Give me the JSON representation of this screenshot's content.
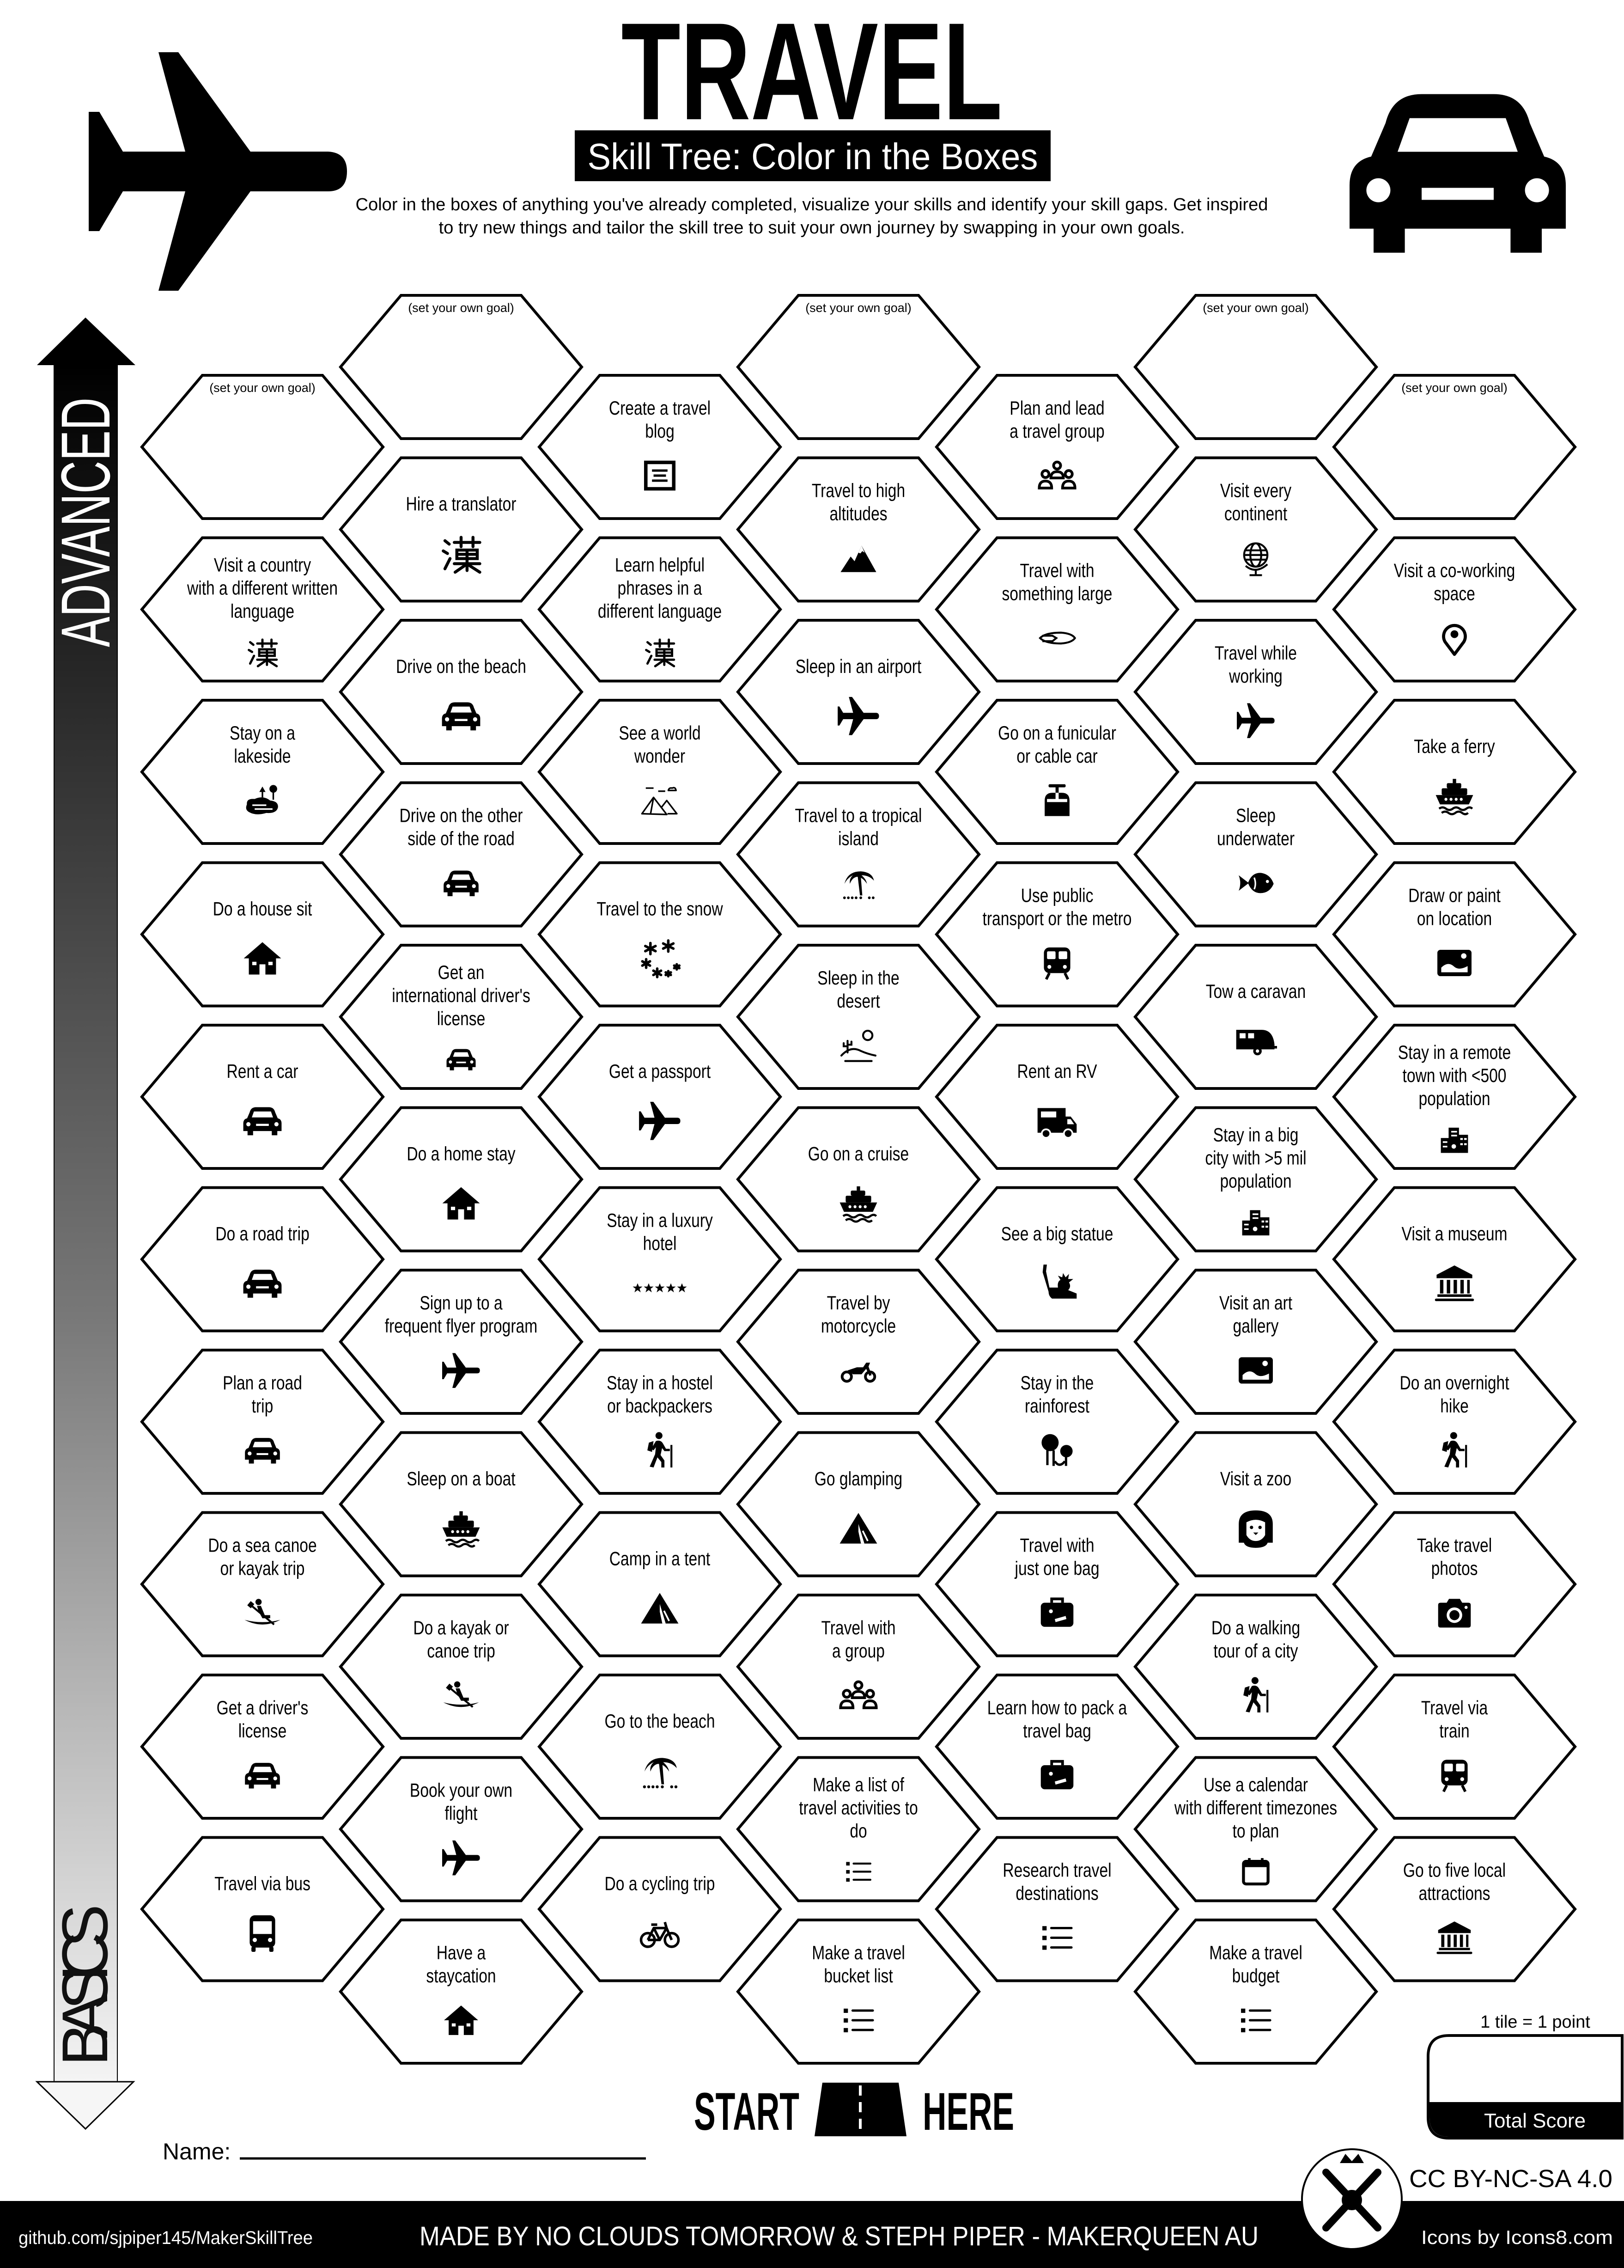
{
  "header": {
    "title": "TRAVEL",
    "subtitle": "Skill Tree: Color in the Boxes",
    "description": [
      "Color in the boxes of anything you've already completed, visualize your skills and identify your skill gaps.  Get inspired",
      "to try new things and tailor the skill tree to suit your own journey by swapping in your own goals."
    ],
    "left_icon": "airplane-icon",
    "right_icon": "car-icon"
  },
  "sidebar": {
    "top_label": "ADVANCED",
    "bottom_label": "BASICS"
  },
  "hexes": {
    "goal_label": "(set your own goal)",
    "columns": [
      [
        {
          "goal": true
        },
        {
          "lines": [
            "Visit a country",
            "with a different written",
            "language"
          ],
          "icon": "hanzi"
        },
        {
          "lines": [
            "Stay on a",
            "lakeside"
          ],
          "icon": "lake"
        },
        {
          "lines": [
            "Do a house sit"
          ],
          "icon": "house"
        },
        {
          "lines": [
            "Rent a car"
          ],
          "icon": "car"
        },
        {
          "lines": [
            "Do a road trip"
          ],
          "icon": "car"
        },
        {
          "lines": [
            "Plan a road",
            "trip"
          ],
          "icon": "car"
        },
        {
          "lines": [
            "Do a sea canoe",
            "or kayak trip"
          ],
          "icon": "kayak"
        },
        {
          "lines": [
            "Get a driver's",
            "license"
          ],
          "icon": "car"
        },
        {
          "lines": [
            "Travel via bus"
          ],
          "icon": "bus"
        }
      ],
      [
        {
          "goal": true
        },
        {
          "lines": [
            "Hire a translator"
          ],
          "icon": "hanzi"
        },
        {
          "lines": [
            "Drive on the beach"
          ],
          "icon": "car"
        },
        {
          "lines": [
            "Drive on the other",
            "side of the road"
          ],
          "icon": "car"
        },
        {
          "lines": [
            "Get an",
            "international driver's",
            "license"
          ],
          "icon": "car"
        },
        {
          "lines": [
            "Do a home stay"
          ],
          "icon": "house"
        },
        {
          "lines": [
            "Sign up to a",
            "frequent flyer program"
          ],
          "icon": "plane"
        },
        {
          "lines": [
            "Sleep on a boat"
          ],
          "icon": "ship"
        },
        {
          "lines": [
            "Do a kayak or",
            "canoe trip"
          ],
          "icon": "kayak"
        },
        {
          "lines": [
            "Book your own",
            "flight"
          ],
          "icon": "plane"
        },
        {
          "lines": [
            "Have a",
            "staycation"
          ],
          "icon": "house"
        }
      ],
      [
        {
          "lines": [
            "Create a travel",
            "blog"
          ],
          "icon": "blog"
        },
        {
          "lines": [
            "Learn helpful",
            "phrases in a",
            "different language"
          ],
          "icon": "hanzi"
        },
        {
          "lines": [
            "See a world",
            "wonder"
          ],
          "icon": "pyramids"
        },
        {
          "lines": [
            "Travel to the snow"
          ],
          "icon": "snow"
        },
        {
          "lines": [
            "Get a passport"
          ],
          "icon": "plane"
        },
        {
          "lines": [
            "Stay in a luxury",
            "hotel"
          ],
          "icon": "stars"
        },
        {
          "lines": [
            "Stay in a hostel",
            "or backpackers"
          ],
          "icon": "hiker"
        },
        {
          "lines": [
            "Camp in a tent"
          ],
          "icon": "tent"
        },
        {
          "lines": [
            "Go to the beach"
          ],
          "icon": "palm"
        },
        {
          "lines": [
            "Do a cycling trip"
          ],
          "icon": "bicycle"
        }
      ],
      [
        {
          "goal": true
        },
        {
          "lines": [
            "Travel to high",
            "altitudes"
          ],
          "icon": "mountain"
        },
        {
          "lines": [
            "Sleep in an airport"
          ],
          "icon": "plane"
        },
        {
          "lines": [
            "Travel to a tropical",
            "island"
          ],
          "icon": "palm"
        },
        {
          "lines": [
            "Sleep in the",
            "desert"
          ],
          "icon": "desert"
        },
        {
          "lines": [
            "Go on a cruise"
          ],
          "icon": "ship"
        },
        {
          "lines": [
            "Travel by",
            "motorcycle"
          ],
          "icon": "motorcycle"
        },
        {
          "lines": [
            "Go glamping"
          ],
          "icon": "tent"
        },
        {
          "lines": [
            "Travel with",
            "a group"
          ],
          "icon": "group"
        },
        {
          "lines": [
            "Make a list of",
            "travel activities to",
            "do"
          ],
          "icon": "list"
        },
        {
          "lines": [
            "Make a travel",
            "bucket list"
          ],
          "icon": "list"
        }
      ],
      [
        {
          "lines": [
            "Plan and lead",
            "a travel group"
          ],
          "icon": "group"
        },
        {
          "lines": [
            "Travel with",
            "something large"
          ],
          "icon": "surfboard"
        },
        {
          "lines": [
            "Go on a funicular",
            "or cable car"
          ],
          "icon": "cablecar"
        },
        {
          "lines": [
            "Use public",
            "transport or the metro"
          ],
          "icon": "train"
        },
        {
          "lines": [
            "Rent an RV"
          ],
          "icon": "rv"
        },
        {
          "lines": [
            "See a big statue"
          ],
          "icon": "statue"
        },
        {
          "lines": [
            "Stay in the",
            "rainforest"
          ],
          "icon": "forest"
        },
        {
          "lines": [
            "Travel with",
            "just one bag"
          ],
          "icon": "suitcase"
        },
        {
          "lines": [
            "Learn how to pack a",
            "travel bag"
          ],
          "icon": "suitcase"
        },
        {
          "lines": [
            "Research travel",
            "destinations"
          ],
          "icon": "list"
        }
      ],
      [
        {
          "goal": true
        },
        {
          "lines": [
            "Visit every",
            "continent"
          ],
          "icon": "globe"
        },
        {
          "lines": [
            "Travel while",
            "working"
          ],
          "icon": "plane"
        },
        {
          "lines": [
            "Sleep",
            "underwater"
          ],
          "icon": "fish"
        },
        {
          "lines": [
            "Tow a caravan"
          ],
          "icon": "caravan"
        },
        {
          "lines": [
            "Stay in a big",
            "city with >5 mil",
            "population"
          ],
          "icon": "city"
        },
        {
          "lines": [
            "Visit an art",
            "gallery"
          ],
          "icon": "picture"
        },
        {
          "lines": [
            "Visit a zoo"
          ],
          "icon": "lion"
        },
        {
          "lines": [
            "Do a walking",
            "tour of a city"
          ],
          "icon": "hiker"
        },
        {
          "lines": [
            "Use a calendar",
            "with different timezones",
            "to plan"
          ],
          "icon": "calendar"
        },
        {
          "lines": [
            "Make a travel",
            "budget"
          ],
          "icon": "list"
        }
      ],
      [
        {
          "goal": true
        },
        {
          "lines": [
            "Visit a co-working",
            "space"
          ],
          "icon": "pin"
        },
        {
          "lines": [
            "Take a ferry"
          ],
          "icon": "ship"
        },
        {
          "lines": [
            "Draw or paint",
            "on location"
          ],
          "icon": "picture"
        },
        {
          "lines": [
            "Stay in a remote",
            "town with <500",
            "population"
          ],
          "icon": "city"
        },
        {
          "lines": [
            "Visit a museum"
          ],
          "icon": "museum"
        },
        {
          "lines": [
            "Do an overnight",
            "hike"
          ],
          "icon": "hiker"
        },
        {
          "lines": [
            "Take travel",
            "photos"
          ],
          "icon": "camera"
        },
        {
          "lines": [
            "Travel via",
            "train"
          ],
          "icon": "train"
        },
        {
          "lines": [
            "Go to five local",
            "attractions"
          ],
          "icon": "museum"
        }
      ]
    ]
  },
  "start": {
    "left": "START",
    "right": "HERE",
    "icon": "road-icon"
  },
  "name_label": "Name:",
  "score": {
    "caption": "1 tile = 1 point",
    "label": "Total Score"
  },
  "license": "CC BY-NC-SA 4.0",
  "footer": {
    "repo": "github.com/sjpiper145/MakerSkillTree",
    "credits": "MADE BY NO CLOUDS TOMORROW & STEPH PIPER  -  MAKERQUEEN AU",
    "icons": "Icons by Icons8.com"
  },
  "colors": {
    "ink": "#000000",
    "paper": "#ffffff",
    "arrow_bottom": "#f4f4f4"
  }
}
